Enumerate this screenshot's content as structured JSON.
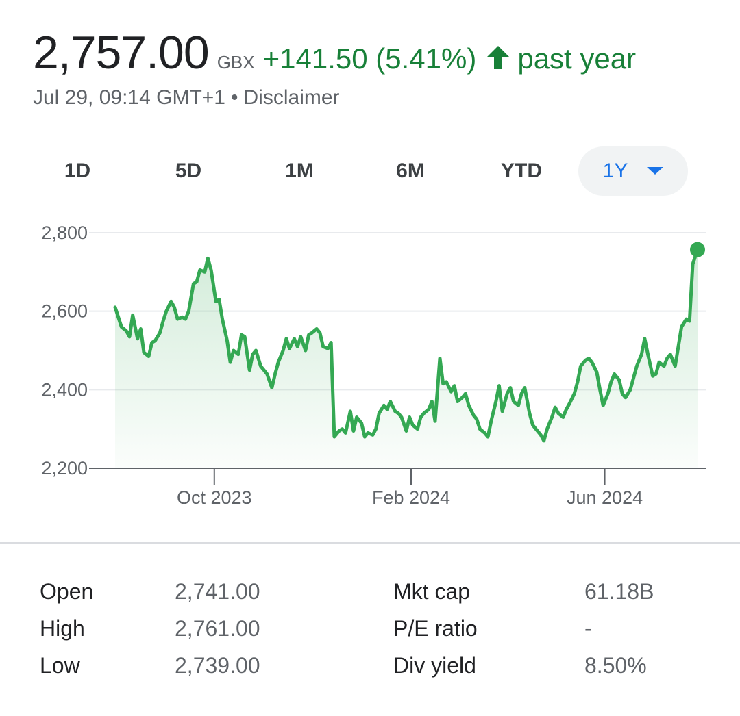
{
  "quote": {
    "price": "2,757.00",
    "currency": "GBX",
    "change": "+141.50 (5.41%)",
    "period": "past year",
    "timestamp": "Jul 29, 09:14 GMT+1",
    "separator": "•",
    "disclaimer": "Disclaimer",
    "accent_color": "#188038"
  },
  "ranges": [
    {
      "label": "1D",
      "active": false
    },
    {
      "label": "5D",
      "active": false
    },
    {
      "label": "1M",
      "active": false
    },
    {
      "label": "6M",
      "active": false
    },
    {
      "label": "YTD",
      "active": false
    },
    {
      "label": "1Y",
      "active": true
    }
  ],
  "chart_data": {
    "type": "area",
    "x_ticks": [
      "Oct 2023",
      "Feb 2024",
      "Jun 2024"
    ],
    "y_ticks": [
      "2,200",
      "2,400",
      "2,600",
      "2,800"
    ],
    "ylim": [
      2200,
      2800
    ],
    "x_range": [
      "2023-07-31",
      "2024-07-29"
    ],
    "grid": true,
    "line_color": "#34a853",
    "points": [
      [
        "2023-07-31",
        2610
      ],
      [
        "2023-08-02",
        2585
      ],
      [
        "2023-08-04",
        2560
      ],
      [
        "2023-08-07",
        2550
      ],
      [
        "2023-08-09",
        2535
      ],
      [
        "2023-08-11",
        2590
      ],
      [
        "2023-08-14",
        2530
      ],
      [
        "2023-08-16",
        2555
      ],
      [
        "2023-08-18",
        2495
      ],
      [
        "2023-08-21",
        2485
      ],
      [
        "2023-08-23",
        2520
      ],
      [
        "2023-08-25",
        2525
      ],
      [
        "2023-08-28",
        2545
      ],
      [
        "2023-08-30",
        2575
      ],
      [
        "2023-09-01",
        2600
      ],
      [
        "2023-09-04",
        2625
      ],
      [
        "2023-09-06",
        2610
      ],
      [
        "2023-09-08",
        2580
      ],
      [
        "2023-09-11",
        2585
      ],
      [
        "2023-09-13",
        2580
      ],
      [
        "2023-09-15",
        2600
      ],
      [
        "2023-09-18",
        2670
      ],
      [
        "2023-09-20",
        2675
      ],
      [
        "2023-09-22",
        2705
      ],
      [
        "2023-09-25",
        2700
      ],
      [
        "2023-09-27",
        2735
      ],
      [
        "2023-09-29",
        2705
      ],
      [
        "2023-10-02",
        2625
      ],
      [
        "2023-10-04",
        2630
      ],
      [
        "2023-10-06",
        2580
      ],
      [
        "2023-10-09",
        2525
      ],
      [
        "2023-10-11",
        2470
      ],
      [
        "2023-10-13",
        2500
      ],
      [
        "2023-10-16",
        2490
      ],
      [
        "2023-10-18",
        2540
      ],
      [
        "2023-10-20",
        2535
      ],
      [
        "2023-10-23",
        2450
      ],
      [
        "2023-10-25",
        2490
      ],
      [
        "2023-10-27",
        2500
      ],
      [
        "2023-10-30",
        2460
      ],
      [
        "2023-11-01",
        2450
      ],
      [
        "2023-11-03",
        2440
      ],
      [
        "2023-11-06",
        2405
      ],
      [
        "2023-11-08",
        2440
      ],
      [
        "2023-11-10",
        2470
      ],
      [
        "2023-11-13",
        2500
      ],
      [
        "2023-11-15",
        2530
      ],
      [
        "2023-11-17",
        2505
      ],
      [
        "2023-11-20",
        2530
      ],
      [
        "2023-11-22",
        2510
      ],
      [
        "2023-11-24",
        2535
      ],
      [
        "2023-11-27",
        2500
      ],
      [
        "2023-11-29",
        2540
      ],
      [
        "2023-12-01",
        2545
      ],
      [
        "2023-12-04",
        2555
      ],
      [
        "2023-12-06",
        2545
      ],
      [
        "2023-12-08",
        2510
      ],
      [
        "2023-12-11",
        2505
      ],
      [
        "2023-12-13",
        2520
      ],
      [
        "2023-12-15",
        2280
      ],
      [
        "2023-12-18",
        2295
      ],
      [
        "2023-12-20",
        2300
      ],
      [
        "2023-12-22",
        2290
      ],
      [
        "2023-12-25",
        2345
      ],
      [
        "2023-12-27",
        2295
      ],
      [
        "2023-12-29",
        2330
      ],
      [
        "2024-01-01",
        2315
      ],
      [
        "2024-01-03",
        2280
      ],
      [
        "2024-01-05",
        2290
      ],
      [
        "2024-01-08",
        2285
      ],
      [
        "2024-01-10",
        2300
      ],
      [
        "2024-01-12",
        2340
      ],
      [
        "2024-01-15",
        2360
      ],
      [
        "2024-01-17",
        2350
      ],
      [
        "2024-01-19",
        2370
      ],
      [
        "2024-01-22",
        2345
      ],
      [
        "2024-01-24",
        2340
      ],
      [
        "2024-01-26",
        2330
      ],
      [
        "2024-01-29",
        2295
      ],
      [
        "2024-01-31",
        2330
      ],
      [
        "2024-02-02",
        2310
      ],
      [
        "2024-02-05",
        2300
      ],
      [
        "2024-02-07",
        2330
      ],
      [
        "2024-02-09",
        2340
      ],
      [
        "2024-02-12",
        2350
      ],
      [
        "2024-02-14",
        2370
      ],
      [
        "2024-02-16",
        2320
      ],
      [
        "2024-02-19",
        2480
      ],
      [
        "2024-02-21",
        2415
      ],
      [
        "2024-02-23",
        2420
      ],
      [
        "2024-02-26",
        2395
      ],
      [
        "2024-02-28",
        2410
      ],
      [
        "2024-03-01",
        2370
      ],
      [
        "2024-03-04",
        2380
      ],
      [
        "2024-03-06",
        2390
      ],
      [
        "2024-03-08",
        2360
      ],
      [
        "2024-03-11",
        2335
      ],
      [
        "2024-03-13",
        2325
      ],
      [
        "2024-03-15",
        2300
      ],
      [
        "2024-03-18",
        2290
      ],
      [
        "2024-03-20",
        2280
      ],
      [
        "2024-03-22",
        2320
      ],
      [
        "2024-03-25",
        2370
      ],
      [
        "2024-03-27",
        2410
      ],
      [
        "2024-03-29",
        2345
      ],
      [
        "2024-04-01",
        2390
      ],
      [
        "2024-04-03",
        2405
      ],
      [
        "2024-04-05",
        2370
      ],
      [
        "2024-04-08",
        2360
      ],
      [
        "2024-04-10",
        2390
      ],
      [
        "2024-04-12",
        2405
      ],
      [
        "2024-04-15",
        2340
      ],
      [
        "2024-04-17",
        2310
      ],
      [
        "2024-04-19",
        2300
      ],
      [
        "2024-04-22",
        2285
      ],
      [
        "2024-04-24",
        2270
      ],
      [
        "2024-04-26",
        2300
      ],
      [
        "2024-04-29",
        2330
      ],
      [
        "2024-05-01",
        2355
      ],
      [
        "2024-05-03",
        2340
      ],
      [
        "2024-05-06",
        2330
      ],
      [
        "2024-05-08",
        2350
      ],
      [
        "2024-05-10",
        2365
      ],
      [
        "2024-05-13",
        2390
      ],
      [
        "2024-05-15",
        2420
      ],
      [
        "2024-05-17",
        2460
      ],
      [
        "2024-05-20",
        2475
      ],
      [
        "2024-05-22",
        2480
      ],
      [
        "2024-05-24",
        2470
      ],
      [
        "2024-05-27",
        2445
      ],
      [
        "2024-05-29",
        2400
      ],
      [
        "2024-05-31",
        2360
      ],
      [
        "2024-06-03",
        2390
      ],
      [
        "2024-06-05",
        2420
      ],
      [
        "2024-06-07",
        2440
      ],
      [
        "2024-06-10",
        2425
      ],
      [
        "2024-06-12",
        2390
      ],
      [
        "2024-06-14",
        2380
      ],
      [
        "2024-06-17",
        2400
      ],
      [
        "2024-06-19",
        2430
      ],
      [
        "2024-06-21",
        2460
      ],
      [
        "2024-06-24",
        2490
      ],
      [
        "2024-06-26",
        2530
      ],
      [
        "2024-06-28",
        2490
      ],
      [
        "2024-07-01",
        2435
      ],
      [
        "2024-07-03",
        2440
      ],
      [
        "2024-07-05",
        2470
      ],
      [
        "2024-07-08",
        2460
      ],
      [
        "2024-07-10",
        2480
      ],
      [
        "2024-07-12",
        2490
      ],
      [
        "2024-07-15",
        2460
      ],
      [
        "2024-07-17",
        2510
      ],
      [
        "2024-07-19",
        2560
      ],
      [
        "2024-07-22",
        2580
      ],
      [
        "2024-07-24",
        2575
      ],
      [
        "2024-07-26",
        2720
      ],
      [
        "2024-07-29",
        2757
      ]
    ]
  },
  "stats": {
    "left": [
      {
        "label": "Open",
        "value": "2,741.00"
      },
      {
        "label": "High",
        "value": "2,761.00"
      },
      {
        "label": "Low",
        "value": "2,739.00"
      }
    ],
    "right": [
      {
        "label": "Mkt cap",
        "value": "61.18B"
      },
      {
        "label": "P/E ratio",
        "value": "-"
      },
      {
        "label": "Div yield",
        "value": "8.50%"
      }
    ]
  }
}
